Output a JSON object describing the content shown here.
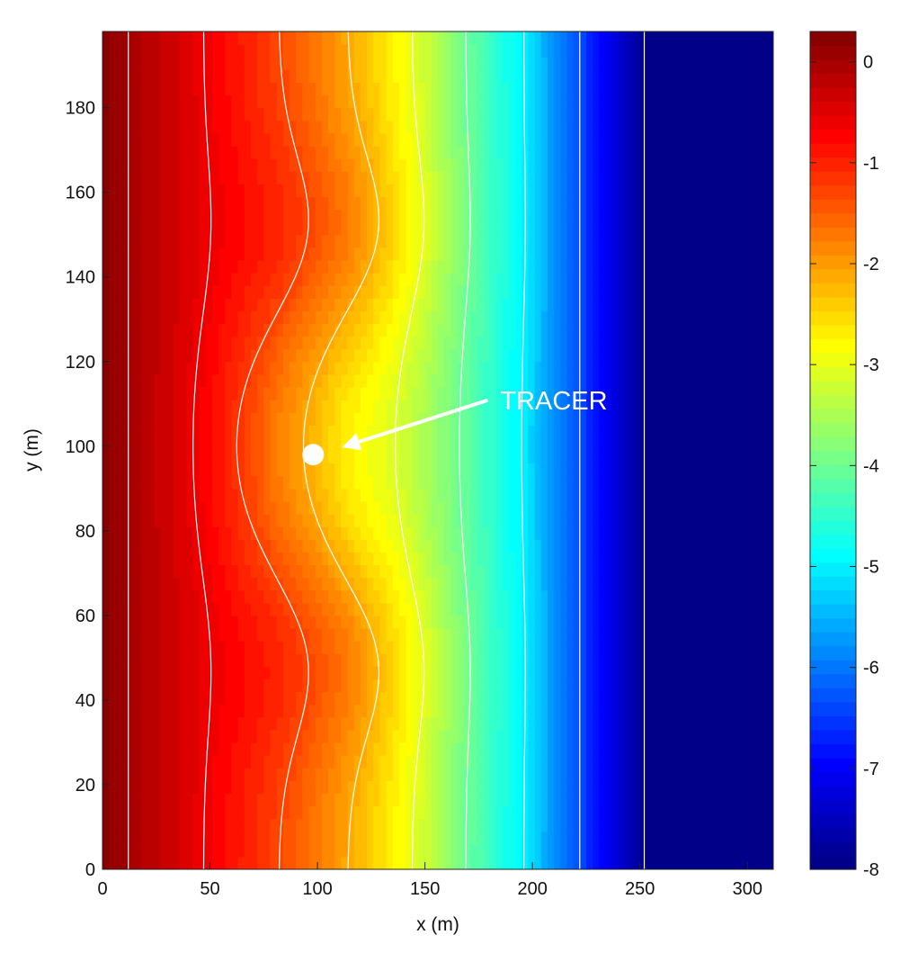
{
  "chart_data": {
    "type": "heatmap",
    "title": "",
    "xlabel": "x (m)",
    "ylabel": "y (m)",
    "xlim": [
      0,
      312
    ],
    "ylim": [
      0,
      198
    ],
    "x_ticks": [
      0,
      50,
      100,
      150,
      200,
      250,
      300
    ],
    "y_ticks": [
      0,
      20,
      40,
      60,
      80,
      100,
      120,
      140,
      160,
      180
    ],
    "colorbar": {
      "range": [
        -8,
        0.3
      ],
      "ticks": [
        0,
        -1,
        -2,
        -3,
        -4,
        -5,
        -6,
        -7,
        -8
      ],
      "colormap": "jet",
      "levels": 60
    },
    "field": {
      "description_units": "value decreases with x; sinusoidal bulge along y centered at y = 100",
      "contour_lines_color": "#ffffff",
      "contours": [
        {
          "base_x": 12,
          "amplitude": 0
        },
        {
          "base_x": 47,
          "amplitude": 5
        },
        {
          "base_x": 82,
          "amplitude": 20
        },
        {
          "base_x": 114,
          "amplitude": 21
        },
        {
          "base_x": 144,
          "amplitude": 8
        },
        {
          "base_x": 169,
          "amplitude": 3
        },
        {
          "base_x": 196,
          "amplitude": 1
        },
        {
          "base_x": 222,
          "amplitude": 0
        },
        {
          "base_x": 252,
          "amplitude": 0
        }
      ]
    },
    "annotations": [
      {
        "text": "TRACER",
        "point": {
          "x": 98,
          "y": 98
        },
        "arrow_tip": {
          "x": 113,
          "y": 100
        },
        "text_anchor": {
          "x": 185,
          "y": 110
        },
        "color": "#ffffff"
      }
    ]
  }
}
